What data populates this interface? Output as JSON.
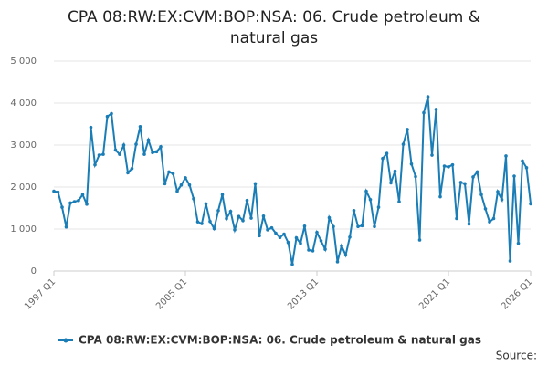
{
  "chart_data": {
    "type": "line",
    "title": "CPA 08:RW:EX:CVM:BOP:NSA: 06. Crude petroleum & natural gas",
    "source": "Source:",
    "categories": [
      "1997 Q1",
      null,
      null,
      null,
      null,
      null,
      null,
      null,
      null,
      null,
      null,
      null,
      null,
      null,
      null,
      null,
      null,
      null,
      null,
      null,
      null,
      null,
      null,
      null,
      null,
      null,
      null,
      null,
      null,
      null,
      null,
      null,
      "2005 Q1",
      null,
      null,
      null,
      null,
      null,
      null,
      null,
      null,
      null,
      null,
      null,
      null,
      null,
      null,
      null,
      null,
      null,
      null,
      null,
      null,
      null,
      null,
      null,
      null,
      null,
      null,
      null,
      null,
      null,
      null,
      null,
      "2013 Q1",
      null,
      null,
      null,
      null,
      null,
      null,
      null,
      null,
      null,
      null,
      null,
      null,
      null,
      null,
      null,
      null,
      null,
      null,
      null,
      null,
      null,
      null,
      null,
      null,
      null,
      null,
      null,
      null,
      null,
      null,
      null,
      "2021 Q1",
      null,
      null,
      null,
      null,
      null,
      null,
      null,
      null,
      null,
      null,
      null,
      null,
      null,
      null,
      null,
      null,
      null,
      null,
      null,
      "2026 Q1"
    ],
    "series": [
      {
        "name": "CPA 08:RW:EX:CVM:BOP:NSA: 06. Crude petroleum & natural gas",
        "color": "#1a7db6",
        "values": [
          1900,
          1880,
          1520,
          1050,
          1620,
          1650,
          1680,
          1820,
          1590,
          3420,
          2530,
          2760,
          2780,
          3680,
          3750,
          2880,
          2780,
          3000,
          2340,
          2440,
          3020,
          3440,
          2780,
          3120,
          2820,
          2840,
          2960,
          2080,
          2360,
          2320,
          1900,
          2050,
          2220,
          2050,
          1720,
          1170,
          1130,
          1600,
          1180,
          1010,
          1440,
          1820,
          1250,
          1420,
          980,
          1300,
          1200,
          1680,
          1260,
          2080,
          840,
          1310,
          980,
          1030,
          900,
          800,
          880,
          680,
          160,
          790,
          660,
          1070,
          500,
          480,
          920,
          720,
          520,
          1270,
          1060,
          220,
          600,
          380,
          810,
          1440,
          1060,
          1080,
          1900,
          1700,
          1060,
          1520,
          2680,
          2800,
          2100,
          2380,
          1650,
          3020,
          3370,
          2550,
          2250,
          740,
          3770,
          4150,
          2760,
          3850,
          1770,
          2500,
          2480,
          2530,
          1250,
          2110,
          2080,
          1120,
          2240,
          2360,
          1820,
          1480,
          1170,
          1250,
          1890,
          1700,
          2740,
          240,
          2260,
          660,
          2620,
          2460,
          1600
        ]
      }
    ],
    "ylim": [
      0,
      5000
    ],
    "yticks": [
      0,
      {
        "value": 1000,
        "label": "1 000"
      },
      {
        "value": 2000,
        "label": "2 000"
      },
      {
        "value": 3000,
        "label": "3 000"
      },
      {
        "value": 4000,
        "label": "4 000"
      },
      {
        "value": 5000,
        "label": "5 000"
      }
    ],
    "grid": true
  }
}
